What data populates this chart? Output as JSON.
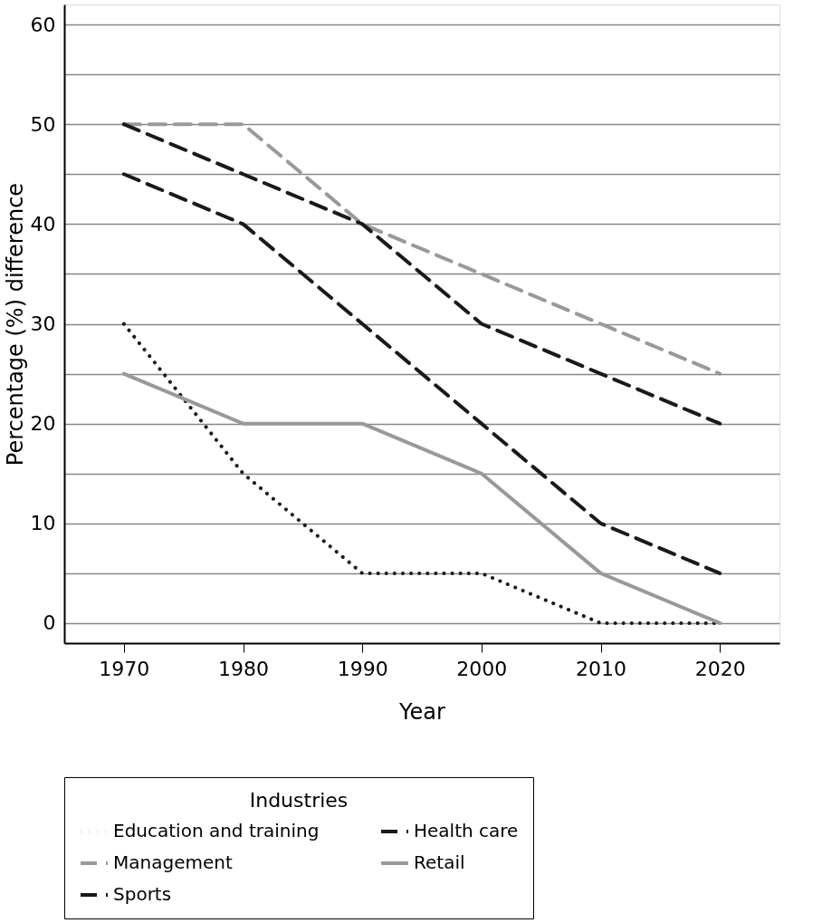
{
  "chart_data": {
    "type": "line",
    "xlabel": "Year",
    "ylabel": "Percentage (%) difference",
    "legend_title": "Industries",
    "legend": "bottom",
    "grid": "y",
    "marker": "none",
    "x": [
      1970,
      1980,
      1990,
      2000,
      2010,
      2020
    ],
    "xlim": [
      1965,
      2025
    ],
    "xticks": [
      1970,
      1980,
      1990,
      2000,
      2010,
      2020
    ],
    "ylim": [
      -2,
      62
    ],
    "yticks": [
      0,
      {
        "value": 5,
        "label": null
      },
      10,
      {
        "value": 15,
        "label": null
      },
      20,
      {
        "value": 25,
        "label": null
      },
      30,
      {
        "value": 35,
        "label": null
      },
      40,
      {
        "value": 45,
        "label": null
      },
      50,
      {
        "value": 55,
        "label": null
      },
      60
    ],
    "series": [
      {
        "name": "Education and training",
        "color": "#1a1a1a",
        "line_style": "dotted",
        "values": [
          30,
          15,
          5,
          5,
          0,
          0
        ]
      },
      {
        "name": "Health care",
        "color": "#1a1a1a",
        "line_style": "dashed",
        "values": [
          45,
          40,
          30,
          20,
          10,
          5
        ]
      },
      {
        "name": "Management",
        "color": "#999999",
        "line_style": "dashed",
        "values": [
          50,
          50,
          40,
          35,
          30,
          25
        ]
      },
      {
        "name": "Retail",
        "color": "#999999",
        "line_style": "solid",
        "values": [
          25,
          20,
          20,
          15,
          5,
          0
        ]
      },
      {
        "name": "Sports",
        "color": "#1a1a1a",
        "line_style": "dashed",
        "values": [
          50,
          45,
          40,
          30,
          25,
          20
        ]
      }
    ]
  }
}
